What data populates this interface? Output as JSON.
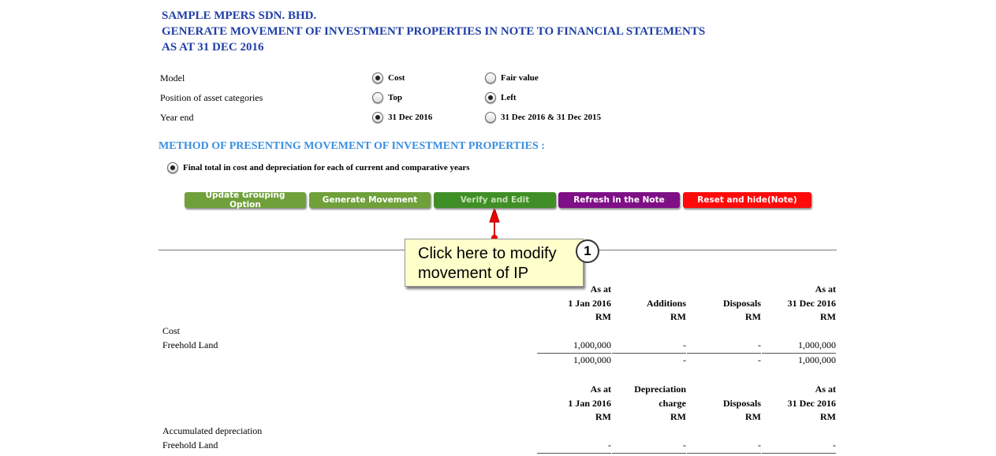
{
  "header": {
    "company": "SAMPLE MPERS SDN. BHD.",
    "title": "GENERATE MOVEMENT OF INVESTMENT PROPERTIES IN NOTE TO FINANCIAL STATEMENTS",
    "date": "AS AT 31 DEC 2016"
  },
  "options": [
    {
      "label": "Model",
      "a": "Cost",
      "b": "Fair value",
      "selected": "a"
    },
    {
      "label": "Position of asset categories",
      "a": "Top",
      "b": "Left",
      "selected": "b"
    },
    {
      "label": "Year end",
      "a": "31 Dec 2016",
      "b": "31 Dec 2016 & 31 Dec 2015",
      "selected": "a"
    }
  ],
  "method": {
    "heading": "METHOD OF PRESENTING MOVEMENT OF INVESTMENT PROPERTIES :",
    "option": "Final total in cost and depreciation for each of current and comparative years"
  },
  "buttons": [
    {
      "label": "Update Grouping Option",
      "color": "#6fa03a"
    },
    {
      "label": "Generate Movement",
      "color": "#6fa03a"
    },
    {
      "label": "Verify and Edit",
      "color": "#3f8f26"
    },
    {
      "label": "Refresh in the Note",
      "color": "#7f0f86"
    },
    {
      "label": "Reset and hide(Note)",
      "color": "#ff0a0a"
    }
  ],
  "callout": {
    "line1": "Click here to modify",
    "line2": "movement of IP",
    "number": "1"
  },
  "cost": {
    "headers": [
      [
        "As at",
        "1 Jan 2016",
        "RM"
      ],
      [
        "",
        "Additions",
        "RM"
      ],
      [
        "",
        "Disposals",
        "RM"
      ],
      [
        "As at",
        "31 Dec 2016",
        "RM"
      ]
    ],
    "section": "Cost",
    "row_label": "Freehold Land",
    "row": [
      "1,000,000",
      "-",
      "-",
      "1,000,000"
    ],
    "total": [
      "1,000,000",
      "-",
      "-",
      "1,000,000"
    ]
  },
  "dep": {
    "headers": [
      [
        "As at",
        "1 Jan 2016",
        "RM"
      ],
      [
        "Depreciation",
        "charge",
        "RM"
      ],
      [
        "",
        "Disposals",
        "RM"
      ],
      [
        "As at",
        "31 Dec 2016",
        "RM"
      ]
    ],
    "section": "Accumulated depreciation",
    "row_label": "Freehold Land",
    "row": [
      "-",
      "-",
      "-",
      "-"
    ]
  }
}
